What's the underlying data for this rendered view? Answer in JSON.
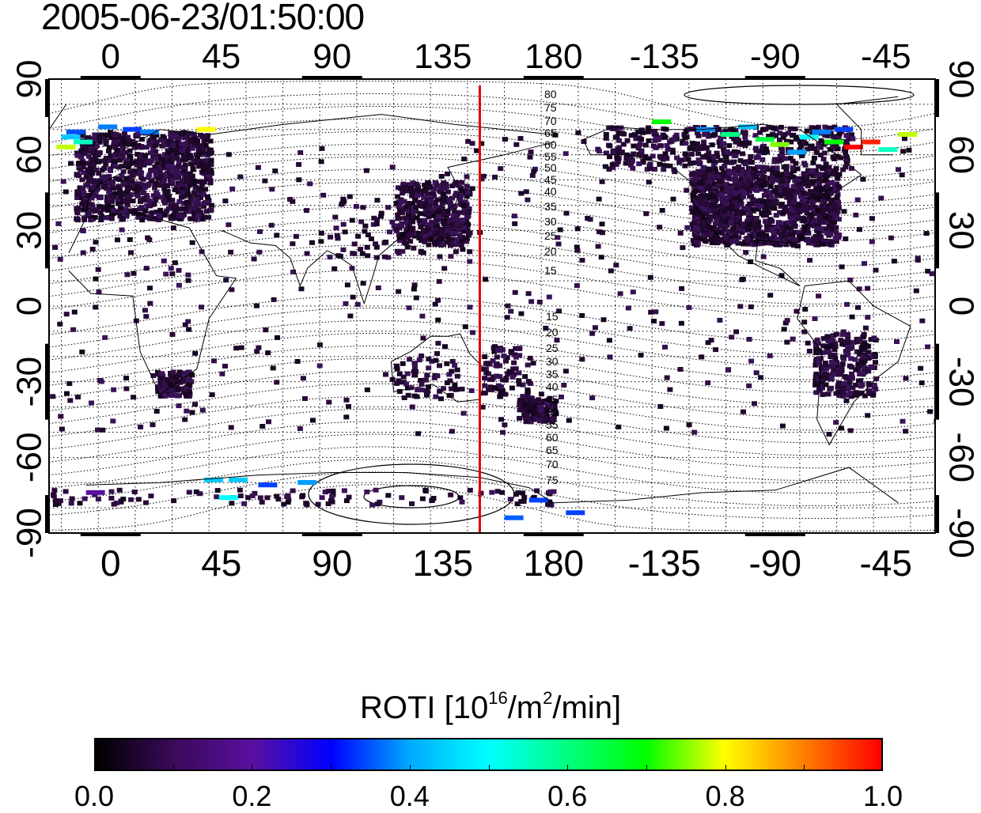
{
  "timestamp": "2005-06-23/01:50:00",
  "map": {
    "x_tick_labels": [
      "0",
      "45",
      "90",
      "135",
      "180",
      "-135",
      "-90",
      "-45"
    ],
    "y_tick_labels": [
      "90",
      "60",
      "30",
      "0",
      "-30",
      "-60",
      "-90"
    ],
    "north_contour_labels": [
      "80",
      "75",
      "70",
      "65",
      "60",
      "55",
      "50",
      "45",
      "40",
      "35",
      "30",
      "25",
      "20",
      "15"
    ],
    "south_contour_labels": [
      "15",
      "20",
      "25",
      "30",
      "35",
      "40",
      "45",
      "50",
      "55",
      "60",
      "65",
      "70",
      "75"
    ],
    "marker_line_longitude": 150,
    "marker_line_color": "#dd0000"
  },
  "colorbar": {
    "title_prefix": "ROTI  [10",
    "title_sup1": "16",
    "title_mid": "/m",
    "title_sup2": "2",
    "title_suffix": "/min]",
    "tick_labels": [
      "0.0",
      "0.2",
      "0.4",
      "0.6",
      "0.8",
      "1.0"
    ],
    "range": [
      0.0,
      1.0
    ],
    "colormap": [
      "#000000",
      "#3a0a5a",
      "#5a0fa0",
      "#0000ff",
      "#00aaff",
      "#00ffff",
      "#00ff80",
      "#00ff00",
      "#ffff00",
      "#ff8000",
      "#ff0000"
    ]
  }
}
